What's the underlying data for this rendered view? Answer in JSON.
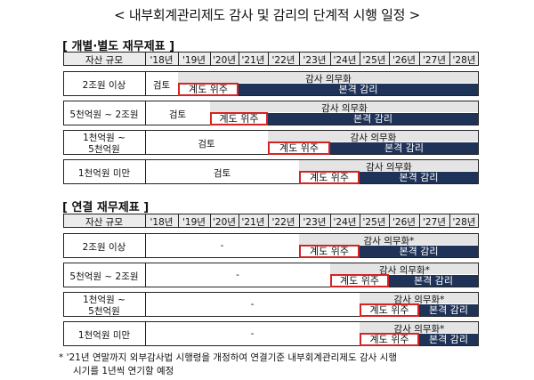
{
  "title": "< 내부회계관리제도 감사 및 감리의 단계적 시행 일정 >",
  "sections": [
    {
      "heading": "[ 개별·별도 재무제표 ]",
      "header": [
        "자산 규모",
        "'18년",
        "'19년",
        "'20년",
        "'21년",
        "'22년",
        "'23년",
        "'24년",
        "'25년",
        "'26년",
        "'27년",
        "'28년"
      ],
      "rows": [
        {
          "label": "2조원 이상",
          "review": "검토",
          "audit": "감사 의무화",
          "phase": "계도 위주",
          "full": "본격 감리"
        },
        {
          "label": "5천억원 ~ 2조원",
          "review": "검토",
          "audit": "감사 의무화",
          "phase": "계도 위주",
          "full": "본격 감리"
        },
        {
          "label": [
            "1천억원 ~",
            "5천억원"
          ],
          "review": "검토",
          "audit": "감사 의무화",
          "phase": "계도 위주",
          "full": "본격 감리"
        },
        {
          "label": "1천억원 미만",
          "review": "검토",
          "audit": "감사 의무화",
          "phase": "계도 위주",
          "full": "본격 감리"
        }
      ]
    },
    {
      "heading": "[ 연결 재무제표 ]",
      "header": [
        "자산 규모",
        "'18년",
        "'19년",
        "'20년",
        "'21년",
        "'22년",
        "'23년",
        "'24년",
        "'25년",
        "'26년",
        "'27년",
        "'28년"
      ],
      "rows": [
        {
          "label": "2조원 이상",
          "review": "-",
          "audit": "감사 의무화*",
          "phase": "계도 위주",
          "full": "본격 감리"
        },
        {
          "label": "5천억원 ~ 2조원",
          "review": "-",
          "audit": "감사 의무화*",
          "phase": "계도 위주",
          "full": "본격 감리"
        },
        {
          "label": [
            "1천억원 ~",
            "5천억원"
          ],
          "review": "-",
          "audit": "감사 의무화*",
          "phase": "계도 위주",
          "full": "본격 감리"
        },
        {
          "label": "1천억원 미만",
          "review": "-",
          "audit": "감사 의무화*",
          "phase": "계도 위주",
          "full": "본격 감리"
        }
      ]
    }
  ],
  "note": [
    "* '21년 연말까지 외부감사법 시행령을 개정하여 연결기준 내부회계관리제도 감사 시행",
    "시기를 1년씩 연기할 예정"
  ],
  "colors": {
    "navy": "#1f3358",
    "red": "#d42424",
    "grey": "#e4e4e4"
  }
}
